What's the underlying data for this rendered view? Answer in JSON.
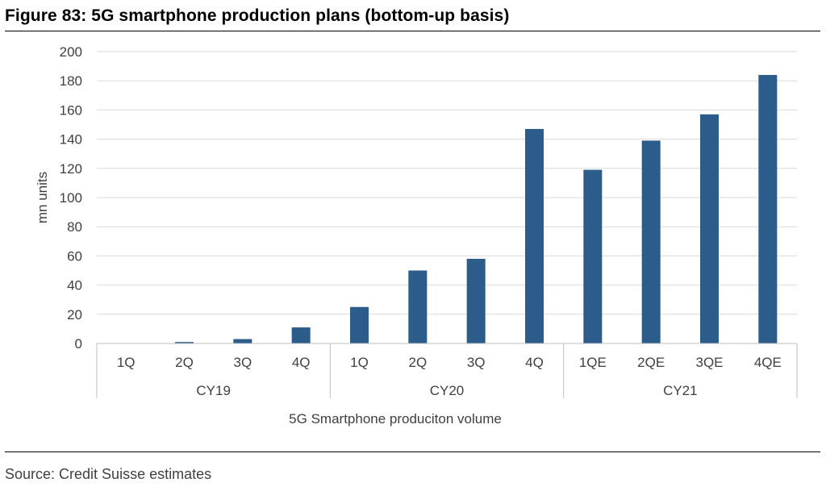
{
  "figure": {
    "title": "Figure 83: 5G smartphone production plans (bottom-up basis)",
    "source": "Source: Credit Suisse estimates"
  },
  "chart_data": {
    "type": "bar",
    "categories": [
      "1Q",
      "2Q",
      "3Q",
      "4Q",
      "1Q",
      "2Q",
      "3Q",
      "4Q",
      "1QE",
      "2QE",
      "3QE",
      "4QE"
    ],
    "groups": [
      {
        "label": "CY19",
        "count": 4
      },
      {
        "label": "CY20",
        "count": 4
      },
      {
        "label": "CY21",
        "count": 4
      }
    ],
    "values": [
      0,
      1,
      3,
      11,
      25,
      50,
      58,
      147,
      119,
      139,
      157,
      184
    ],
    "xlabel": "5G Smartphone produciton volume",
    "ylabel": "mn units",
    "ylim": [
      0,
      200
    ],
    "yticks": [
      0,
      20,
      40,
      60,
      80,
      100,
      120,
      140,
      160,
      180,
      200
    ],
    "grid": true,
    "legend": "none",
    "bar_color": "#2b5c8a",
    "grid_color": "#d9d9d9",
    "axis_color": "#bfbfbf"
  }
}
